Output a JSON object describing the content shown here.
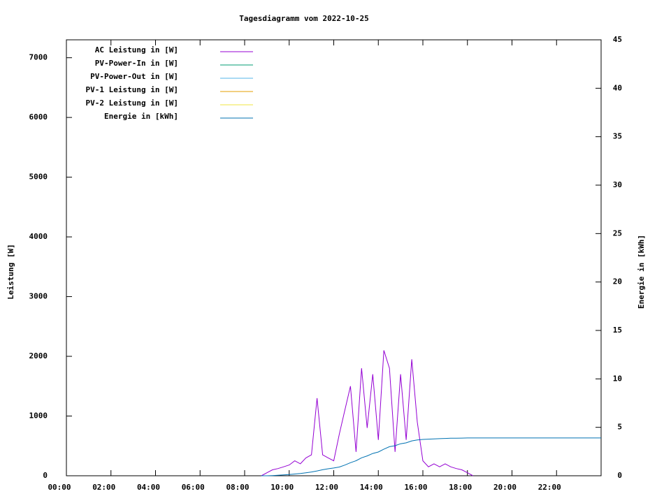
{
  "chart_data": {
    "type": "line",
    "title": "Tagesdiagramm vom 2022-10-25",
    "y_label": "Leistung [W]",
    "y2_label": "Energie in [kWh]",
    "xlim": [
      0,
      24
    ],
    "ylim": [
      0,
      7300
    ],
    "y2lim": [
      0,
      45
    ],
    "xticks": [
      {
        "value": 0,
        "label": "00:00"
      },
      {
        "value": 2,
        "label": "02:00"
      },
      {
        "value": 4,
        "label": "04:00"
      },
      {
        "value": 6,
        "label": "06:00"
      },
      {
        "value": 8,
        "label": "08:00"
      },
      {
        "value": 10,
        "label": "10:00"
      },
      {
        "value": 12,
        "label": "12:00"
      },
      {
        "value": 14,
        "label": "14:00"
      },
      {
        "value": 16,
        "label": "16:00"
      },
      {
        "value": 18,
        "label": "18:00"
      },
      {
        "value": 20,
        "label": "20:00"
      },
      {
        "value": 22,
        "label": "22:00"
      }
    ],
    "yticks": [
      0,
      1000,
      2000,
      3000,
      4000,
      5000,
      6000,
      7000
    ],
    "y2ticks": [
      0,
      5,
      10,
      15,
      20,
      25,
      30,
      35,
      40,
      45
    ],
    "legend": "top-left",
    "x": [
      8.75,
      9,
      9.25,
      9.5,
      9.75,
      10,
      10.25,
      10.5,
      10.75,
      11,
      11.25,
      11.5,
      11.75,
      12,
      12.25,
      12.5,
      12.75,
      13,
      13.25,
      13.5,
      13.75,
      14,
      14.25,
      14.5,
      14.75,
      15,
      15.25,
      15.5,
      15.75,
      16,
      16.25,
      16.5,
      16.75,
      17,
      17.25,
      17.5,
      17.75,
      18,
      18.25,
      18.5,
      18.75,
      19,
      19.25,
      19.5,
      19.75,
      20,
      20.25,
      20.5,
      20.75,
      21,
      21.25,
      21.5,
      21.75,
      22,
      22.25,
      22.5,
      22.75,
      23,
      23.25,
      23.5,
      23.75,
      24
    ],
    "series": [
      {
        "name": "AC Leistung in [W]",
        "color": "#9400d3",
        "values": [
          0,
          50,
          100,
          120,
          150,
          180,
          250,
          200,
          300,
          350,
          1300,
          350,
          300,
          250,
          700,
          1100,
          1500,
          400,
          1800,
          800,
          1700,
          600,
          2100,
          1800,
          400,
          1700,
          600,
          1950,
          900,
          250,
          150,
          200,
          150,
          200,
          150,
          120,
          100,
          50,
          0,
          null,
          null,
          null,
          null,
          null,
          null,
          null,
          null,
          null,
          null,
          null,
          null,
          null,
          null,
          null,
          null,
          null,
          null,
          null,
          null,
          null,
          null,
          null
        ]
      },
      {
        "name": "PV-Power-In in [W]",
        "color": "#009e73",
        "values": [
          null,
          null,
          null,
          null,
          null,
          null,
          null,
          null,
          null,
          null,
          null,
          null,
          null,
          null,
          null,
          null,
          null,
          null,
          null,
          null,
          null,
          null,
          null,
          null,
          null,
          null,
          null,
          null,
          null,
          null,
          null,
          null,
          null,
          null,
          null,
          null,
          null,
          null,
          null,
          null,
          null,
          null,
          null,
          null,
          null,
          null,
          null,
          null,
          null,
          null,
          null,
          null,
          null,
          null,
          null,
          null,
          null,
          null,
          null,
          null,
          null,
          null
        ]
      },
      {
        "name": "PV-Power-Out in [W]",
        "color": "#56b4e9",
        "values": [
          null,
          null,
          null,
          null,
          null,
          null,
          null,
          null,
          null,
          null,
          null,
          null,
          null,
          null,
          null,
          null,
          null,
          null,
          null,
          null,
          null,
          null,
          null,
          null,
          null,
          null,
          null,
          null,
          null,
          null,
          null,
          null,
          null,
          null,
          null,
          null,
          null,
          null,
          null,
          null,
          null,
          null,
          null,
          null,
          null,
          null,
          null,
          null,
          null,
          null,
          null,
          null,
          null,
          null,
          null,
          null,
          null,
          null,
          null,
          null,
          null,
          null
        ]
      },
      {
        "name": "PV-1 Leistung in [W]",
        "color": "#e69f00",
        "values": [
          null,
          null,
          null,
          null,
          null,
          null,
          null,
          null,
          null,
          null,
          null,
          null,
          null,
          null,
          null,
          null,
          null,
          null,
          null,
          null,
          null,
          null,
          null,
          null,
          null,
          null,
          null,
          null,
          null,
          null,
          null,
          null,
          null,
          null,
          null,
          null,
          null,
          null,
          null,
          null,
          null,
          null,
          null,
          null,
          null,
          null,
          null,
          null,
          null,
          null,
          null,
          null,
          null,
          null,
          null,
          null,
          null,
          null,
          null,
          null,
          null,
          null
        ]
      },
      {
        "name": "PV-2 Leistung in [W]",
        "color": "#f0e442",
        "values": [
          null,
          null,
          null,
          null,
          null,
          null,
          null,
          null,
          null,
          null,
          null,
          null,
          null,
          null,
          null,
          null,
          null,
          null,
          null,
          null,
          null,
          null,
          null,
          null,
          null,
          null,
          null,
          null,
          null,
          null,
          null,
          null,
          null,
          null,
          null,
          null,
          null,
          null,
          null,
          null,
          null,
          null,
          null,
          null,
          null,
          null,
          null,
          null,
          null,
          null,
          null,
          null,
          null,
          null,
          null,
          null,
          null,
          null,
          null,
          null,
          null,
          null
        ]
      },
      {
        "name": "Energie in [kWh]",
        "color": "#0072b2",
        "axis": "y2",
        "values": [
          0,
          0,
          0.02,
          0.05,
          0.09,
          0.13,
          0.18,
          0.24,
          0.31,
          0.39,
          0.5,
          0.62,
          0.72,
          0.8,
          0.9,
          1.1,
          1.35,
          1.55,
          1.85,
          2.05,
          2.3,
          2.45,
          2.75,
          3.0,
          3.1,
          3.3,
          3.4,
          3.6,
          3.7,
          3.75,
          3.78,
          3.8,
          3.83,
          3.85,
          3.87,
          3.88,
          3.89,
          3.9,
          3.9,
          3.9,
          3.9,
          3.9,
          3.9,
          3.9,
          3.9,
          3.9,
          3.9,
          3.9,
          3.9,
          3.9,
          3.9,
          3.9,
          3.9,
          3.9,
          3.9,
          3.9,
          3.9,
          3.9,
          3.9,
          3.9,
          3.9,
          3.9
        ]
      }
    ]
  }
}
